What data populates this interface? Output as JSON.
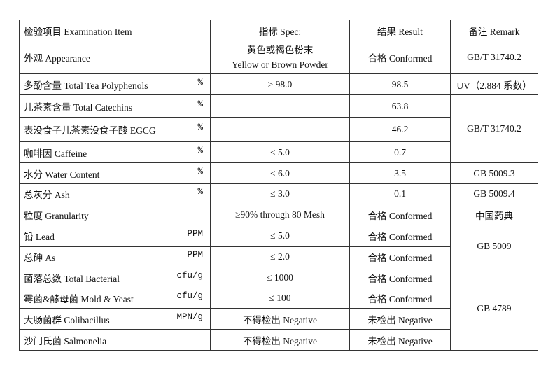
{
  "header": {
    "item": "检验项目 Examination Item",
    "spec": "指标 Spec:",
    "result": "结果 Result",
    "remark": "备注  Remark"
  },
  "rows": [
    {
      "item": "外观 Appearance",
      "unit": "",
      "spec_cn": "黄色或褐色粉末",
      "spec": "Yellow or Brown Powder",
      "result": "合格 Conformed",
      "remark": "GB/T 31740.2"
    },
    {
      "item": "多酚含量 Total Tea Polyphenols",
      "unit": "%",
      "spec": "≥ 98.0",
      "result": "98.5",
      "remark": "UV（2.884 系数）"
    },
    {
      "item": "儿茶素含量 Total Catechins",
      "unit": "%",
      "spec": "",
      "result": "63.8",
      "remark": "GB/T 31740.2"
    },
    {
      "item": "表没食子儿茶素没食子酸 EGCG",
      "unit": "%",
      "spec": "",
      "result": "46.2"
    },
    {
      "item": "咖啡因 Caffeine",
      "unit": "%",
      "spec": "≤ 5.0",
      "result": "0.7"
    },
    {
      "item": "水分 Water Content",
      "unit": "%",
      "spec": "≤ 6.0",
      "result": "3.5",
      "remark": "GB 5009.3"
    },
    {
      "item": "总灰分 Ash",
      "unit": "%",
      "spec": "≤ 3.0",
      "result": "0.1",
      "remark": "GB 5009.4"
    },
    {
      "item": "粒度  Granularity",
      "unit": "",
      "spec": "≥90% through 80 Mesh",
      "result": "合格 Conformed",
      "remark": "中国药典"
    },
    {
      "item": "铅 Lead",
      "unit": "PPM",
      "spec": "≤ 5.0",
      "result": "合格 Conformed",
      "remark": "GB 5009"
    },
    {
      "item": "总砷 As",
      "unit": "PPM",
      "spec": "≤ 2.0",
      "result": "合格 Conformed"
    },
    {
      "item": "菌落总数 Total Bacterial",
      "unit": "cfu/g",
      "spec": "≤ 1000",
      "result": "合格 Conformed",
      "remark": "GB 4789"
    },
    {
      "item": "霉菌&酵母菌  Mold & Yeast",
      "unit": "cfu/g",
      "spec": "≤ 100",
      "result": "合格 Conformed"
    },
    {
      "item": "大肠菌群 Colibacillus",
      "unit": "MPN/g",
      "spec": "不得检出 Negative",
      "result": "未检出 Negative"
    },
    {
      "item": "沙门氏菌  Salmonelia",
      "unit": "",
      "spec": "不得检出 Negative",
      "result": "未检出 Negative"
    }
  ]
}
